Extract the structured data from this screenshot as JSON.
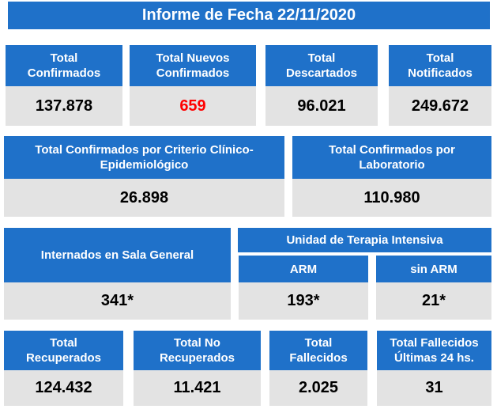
{
  "title": "Informe de Fecha 22/11/2020",
  "row1": [
    {
      "label": "Total\nConfirmados",
      "value": "137.878"
    },
    {
      "label": "Total Nuevos\nConfirmados",
      "value": "659",
      "highlight": "#ff0000"
    },
    {
      "label": "Total\nDescartados",
      "value": "96.021"
    },
    {
      "label": "Total\nNotificados",
      "value": "249.672"
    }
  ],
  "row2": [
    {
      "label": "Total Confirmados por Criterio Clínico-\nEpidemiológico",
      "value": "26.898"
    },
    {
      "label": "Total Confirmados por\nLaboratorio",
      "value": "110.980"
    }
  ],
  "row3": {
    "sala": {
      "label": "Internados en Sala General",
      "value": "341*"
    },
    "uti_header": "Unidad de Terapia Intensiva",
    "arm": {
      "label": "ARM",
      "value": "193*"
    },
    "sin_arm": {
      "label": "sin ARM",
      "value": "21*"
    }
  },
  "row4": [
    {
      "label": "Total\nRecuperados",
      "value": "124.432"
    },
    {
      "label": "Total No\nRecuperados",
      "value": "11.421"
    },
    {
      "label": "Total\nFallecidos",
      "value": "2.025"
    },
    {
      "label": "Total Fallecidos\nÚltimas 24 hs.",
      "value": "31"
    }
  ],
  "colors": {
    "header_blue": "#1f71c9",
    "value_gray": "#e3e3e3"
  }
}
